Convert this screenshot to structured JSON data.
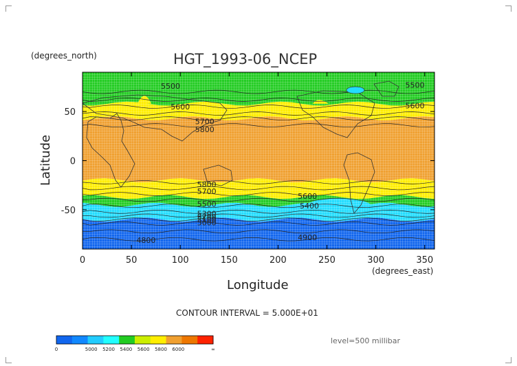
{
  "plot": {
    "title": "HGT_1993-06_NCEP",
    "xlabel": "Longitude",
    "ylabel": "Latitude",
    "x_units": "(degrees_east)",
    "y_units": "(degrees_north)",
    "contour_interval": "CONTOUR INTERVAL = 5.000E+01",
    "level": "level=500 millibar"
  },
  "chart_data": {
    "type": "heatmap",
    "title": "HGT_1993-06_NCEP",
    "xlabel": "Longitude",
    "ylabel": "Latitude",
    "xlim": [
      0,
      360
    ],
    "ylim": [
      -90,
      90
    ],
    "xticks": [
      0,
      50,
      100,
      150,
      200,
      250,
      300,
      350
    ],
    "yticks": [
      -50,
      0,
      50
    ],
    "grid": true,
    "contour_labels": [
      {
        "text": "5500",
        "lon": 90,
        "lat": 76
      },
      {
        "text": "5600",
        "lon": 100,
        "lat": 55
      },
      {
        "text": "5700",
        "lon": 125,
        "lat": 40
      },
      {
        "text": "5800",
        "lon": 125,
        "lat": 32
      },
      {
        "text": "5500",
        "lon": 340,
        "lat": 77
      },
      {
        "text": "5600",
        "lon": 340,
        "lat": 56
      },
      {
        "text": "5800",
        "lon": 127,
        "lat": -24
      },
      {
        "text": "5700",
        "lon": 127,
        "lat": -31
      },
      {
        "text": "5600",
        "lon": 230,
        "lat": -36
      },
      {
        "text": "5400",
        "lon": 232,
        "lat": -46
      },
      {
        "text": "5500",
        "lon": 127,
        "lat": -44
      },
      {
        "text": "5300",
        "lon": 127,
        "lat": -54
      },
      {
        "text": "5200",
        "lon": 127,
        "lat": -57
      },
      {
        "text": "5100",
        "lon": 127,
        "lat": -60
      },
      {
        "text": "5000",
        "lon": 127,
        "lat": -63
      },
      {
        "text": "4800",
        "lon": 65,
        "lat": -81
      },
      {
        "text": "4900",
        "lon": 230,
        "lat": -78
      }
    ],
    "bands": [
      {
        "lat_top": 90,
        "lat_bottom": 58,
        "value_range": "5400-5600",
        "color": "#22cc22"
      },
      {
        "lat_top": 58,
        "lat_bottom": 43,
        "value_range": "5600-5800",
        "color": "#ffee00"
      },
      {
        "lat_top": 43,
        "lat_bottom": -20,
        "value_range": "5800-6000",
        "color": "#f0a030"
      },
      {
        "lat_top": -20,
        "lat_bottom": -37,
        "value_range": "5600-5800",
        "color": "#ffee00"
      },
      {
        "lat_top": -37,
        "lat_bottom": -45,
        "value_range": "5400-5600",
        "color": "#22cc22"
      },
      {
        "lat_top": -45,
        "lat_bottom": -60,
        "value_range": "5200-5400",
        "color": "#22ddff"
      },
      {
        "lat_top": -60,
        "lat_bottom": -90,
        "value_range": "<5000",
        "color": "#1166ee"
      }
    ]
  },
  "colorbar": {
    "labels": [
      "0",
      "5000",
      "5200",
      "5400",
      "5600",
      "5800",
      "6000",
      "∞"
    ],
    "colors": [
      "#1166ee",
      "#1188ff",
      "#22ccff",
      "#22ffff",
      "#22cc22",
      "#ccee00",
      "#ffee00",
      "#f0a030",
      "#ee7700",
      "#ff2200"
    ]
  }
}
